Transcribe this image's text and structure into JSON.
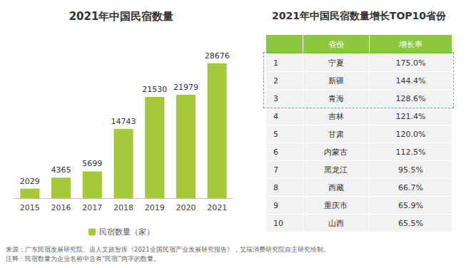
{
  "chart_data": {
    "type": "bar",
    "title": "2021年中国民宿数量",
    "categories": [
      "2015",
      "2016",
      "2017",
      "2018",
      "2019",
      "2020",
      "2021"
    ],
    "series": [
      {
        "name": "民宿数量（家）",
        "color": "#a6c93a",
        "values": [
          2029,
          4365,
          5699,
          14743,
          21530,
          21979,
          28676
        ]
      }
    ],
    "ylim": [
      0,
      30000
    ],
    "data_labels": true,
    "tick_labels": "x",
    "grid": false,
    "legend": "bottom"
  },
  "table": {
    "title": "2021年中国民宿数量增长TOP10省份",
    "header": [
      "省份",
      "增长率"
    ],
    "rows": [
      [
        1,
        "宁夏",
        "175.0%"
      ],
      [
        2,
        "新疆",
        "144.4%"
      ],
      [
        3,
        "青海",
        "128.6%"
      ],
      [
        4,
        "吉林",
        "121.4%"
      ],
      [
        5,
        "甘肃",
        "120.0%"
      ],
      [
        6,
        "内蒙古",
        "112.5%"
      ],
      [
        7,
        "黑龙江",
        "95.5%"
      ],
      [
        8,
        "西藏",
        "66.7%"
      ],
      [
        9,
        "重庆市",
        "65.9%"
      ],
      [
        10,
        "山西",
        "65.5%"
      ]
    ]
  },
  "notes": [
    "来源：广东民宿发展研究院、唐人文旅智库《2021全国民宿产业发展研究报告》，艾瑞消费研究院自主研究绘制。",
    "注释：民宿数量为企业名称中含有“民宿”两字的数量。"
  ]
}
